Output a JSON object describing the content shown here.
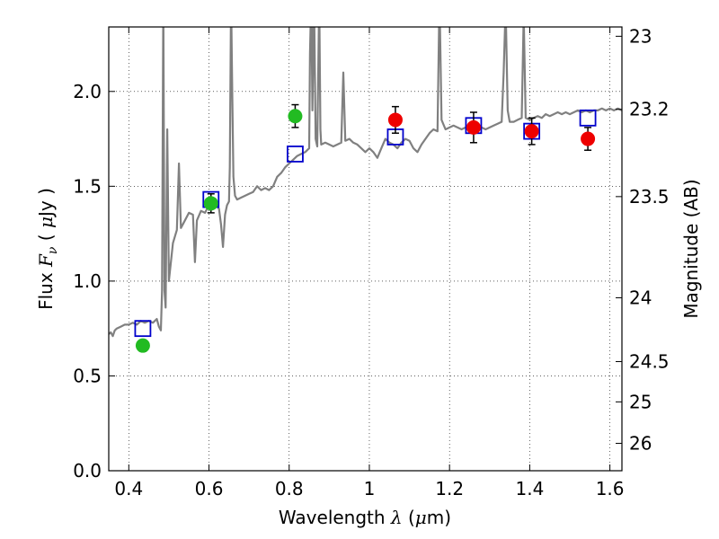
{
  "chart_data": {
    "type": "scatter",
    "xlabel": {
      "prefix": "Wavelength  ",
      "symbol": "λ",
      "mid": " (",
      "unit_sym": "μ",
      "suffix": "m)"
    },
    "ylabel": {
      "prefix": "Flux  ",
      "symbol": "F",
      "sub": "ν",
      "mid": "  ( ",
      "unit_sym": "μ",
      "suffix": "Jy )"
    },
    "y2label": "Magnitude (AB)",
    "xlim": [
      0.35,
      1.63
    ],
    "ylim": [
      0.0,
      2.34
    ],
    "grid": true,
    "x_ticks": [
      {
        "v": 0.4,
        "label": "0.4"
      },
      {
        "v": 0.6,
        "label": "0.6"
      },
      {
        "v": 0.8,
        "label": "0.8"
      },
      {
        "v": 1.0,
        "label": "1"
      },
      {
        "v": 1.2,
        "label": "1.2"
      },
      {
        "v": 1.4,
        "label": "1.4"
      },
      {
        "v": 1.6,
        "label": "1.6"
      }
    ],
    "y_ticks": [
      {
        "v": 0.0,
        "label": "0.0"
      },
      {
        "v": 0.5,
        "label": "0.5"
      },
      {
        "v": 1.0,
        "label": "1.0"
      },
      {
        "v": 1.5,
        "label": "1.5"
      },
      {
        "v": 2.0,
        "label": "2.0"
      }
    ],
    "y2_ticks": [
      {
        "mag": 23,
        "label": "23"
      },
      {
        "mag": 23.2,
        "label": "23.2"
      },
      {
        "mag": 23.5,
        "label": "23.5"
      },
      {
        "mag": 24,
        "label": "24"
      },
      {
        "mag": 24.5,
        "label": "24.5"
      },
      {
        "mag": 25,
        "label": "25"
      },
      {
        "mag": 26,
        "label": "26"
      }
    ],
    "model_spectrum": {
      "color": "#808080",
      "points": [
        [
          0.35,
          0.72
        ],
        [
          0.355,
          0.73
        ],
        [
          0.36,
          0.71
        ],
        [
          0.365,
          0.74
        ],
        [
          0.37,
          0.75
        ],
        [
          0.38,
          0.76
        ],
        [
          0.39,
          0.77
        ],
        [
          0.4,
          0.77
        ],
        [
          0.41,
          0.78
        ],
        [
          0.42,
          0.77
        ],
        [
          0.43,
          0.79
        ],
        [
          0.44,
          0.78
        ],
        [
          0.45,
          0.79
        ],
        [
          0.46,
          0.78
        ],
        [
          0.47,
          0.8
        ],
        [
          0.475,
          0.76
        ],
        [
          0.48,
          0.74
        ],
        [
          0.483,
          0.95
        ],
        [
          0.486,
          2.5
        ],
        [
          0.489,
          0.95
        ],
        [
          0.492,
          0.86
        ],
        [
          0.496,
          1.8
        ],
        [
          0.5,
          1.0
        ],
        [
          0.51,
          1.2
        ],
        [
          0.52,
          1.27
        ],
        [
          0.525,
          1.62
        ],
        [
          0.53,
          1.28
        ],
        [
          0.54,
          1.32
        ],
        [
          0.55,
          1.36
        ],
        [
          0.56,
          1.35
        ],
        [
          0.565,
          1.1
        ],
        [
          0.57,
          1.32
        ],
        [
          0.58,
          1.37
        ],
        [
          0.59,
          1.36
        ],
        [
          0.6,
          1.4
        ],
        [
          0.61,
          1.41
        ],
        [
          0.62,
          1.4
        ],
        [
          0.625,
          1.38
        ],
        [
          0.63,
          1.3
        ],
        [
          0.635,
          1.18
        ],
        [
          0.64,
          1.35
        ],
        [
          0.645,
          1.4
        ],
        [
          0.65,
          1.42
        ],
        [
          0.652,
          1.6
        ],
        [
          0.655,
          2.5
        ],
        [
          0.658,
          2.0
        ],
        [
          0.661,
          1.55
        ],
        [
          0.665,
          1.45
        ],
        [
          0.67,
          1.43
        ],
        [
          0.68,
          1.44
        ],
        [
          0.69,
          1.45
        ],
        [
          0.7,
          1.46
        ],
        [
          0.71,
          1.47
        ],
        [
          0.72,
          1.5
        ],
        [
          0.73,
          1.48
        ],
        [
          0.74,
          1.49
        ],
        [
          0.75,
          1.48
        ],
        [
          0.76,
          1.5
        ],
        [
          0.77,
          1.55
        ],
        [
          0.78,
          1.57
        ],
        [
          0.79,
          1.6
        ],
        [
          0.8,
          1.62
        ],
        [
          0.81,
          1.64
        ],
        [
          0.82,
          1.66
        ],
        [
          0.83,
          1.67
        ],
        [
          0.84,
          1.68
        ],
        [
          0.85,
          1.7
        ],
        [
          0.852,
          2.2
        ],
        [
          0.855,
          2.5
        ],
        [
          0.858,
          1.9
        ],
        [
          0.862,
          2.5
        ],
        [
          0.866,
          1.75
        ],
        [
          0.87,
          1.71
        ],
        [
          0.875,
          2.5
        ],
        [
          0.878,
          1.8
        ],
        [
          0.88,
          1.72
        ],
        [
          0.89,
          1.73
        ],
        [
          0.9,
          1.72
        ],
        [
          0.91,
          1.71
        ],
        [
          0.92,
          1.72
        ],
        [
          0.93,
          1.73
        ],
        [
          0.935,
          2.1
        ],
        [
          0.94,
          1.74
        ],
        [
          0.95,
          1.75
        ],
        [
          0.96,
          1.73
        ],
        [
          0.97,
          1.72
        ],
        [
          0.98,
          1.7
        ],
        [
          0.99,
          1.68
        ],
        [
          1.0,
          1.7
        ],
        [
          1.01,
          1.68
        ],
        [
          1.02,
          1.65
        ],
        [
          1.03,
          1.7
        ],
        [
          1.04,
          1.75
        ],
        [
          1.05,
          1.73
        ],
        [
          1.06,
          1.72
        ],
        [
          1.07,
          1.7
        ],
        [
          1.08,
          1.73
        ],
        [
          1.09,
          1.75
        ],
        [
          1.1,
          1.74
        ],
        [
          1.11,
          1.7
        ],
        [
          1.12,
          1.68
        ],
        [
          1.13,
          1.72
        ],
        [
          1.14,
          1.75
        ],
        [
          1.15,
          1.78
        ],
        [
          1.16,
          1.8
        ],
        [
          1.17,
          1.79
        ],
        [
          1.175,
          2.5
        ],
        [
          1.18,
          1.85
        ],
        [
          1.19,
          1.8
        ],
        [
          1.2,
          1.81
        ],
        [
          1.21,
          1.82
        ],
        [
          1.22,
          1.81
        ],
        [
          1.23,
          1.8
        ],
        [
          1.24,
          1.81
        ],
        [
          1.25,
          1.82
        ],
        [
          1.26,
          1.83
        ],
        [
          1.27,
          1.82
        ],
        [
          1.28,
          1.81
        ],
        [
          1.29,
          1.8
        ],
        [
          1.3,
          1.81
        ],
        [
          1.31,
          1.82
        ],
        [
          1.32,
          1.83
        ],
        [
          1.33,
          1.84
        ],
        [
          1.335,
          2.1
        ],
        [
          1.34,
          2.45
        ],
        [
          1.345,
          1.9
        ],
        [
          1.35,
          1.84
        ],
        [
          1.36,
          1.84
        ],
        [
          1.37,
          1.85
        ],
        [
          1.38,
          1.86
        ],
        [
          1.385,
          2.4
        ],
        [
          1.39,
          1.86
        ],
        [
          1.4,
          1.85
        ],
        [
          1.41,
          1.86
        ],
        [
          1.42,
          1.87
        ],
        [
          1.43,
          1.86
        ],
        [
          1.44,
          1.88
        ],
        [
          1.45,
          1.87
        ],
        [
          1.46,
          1.88
        ],
        [
          1.47,
          1.89
        ],
        [
          1.48,
          1.88
        ],
        [
          1.49,
          1.89
        ],
        [
          1.5,
          1.88
        ],
        [
          1.51,
          1.89
        ],
        [
          1.52,
          1.9
        ],
        [
          1.53,
          1.89
        ],
        [
          1.54,
          1.9
        ],
        [
          1.55,
          1.89
        ],
        [
          1.56,
          1.9
        ],
        [
          1.57,
          1.9
        ],
        [
          1.58,
          1.91
        ],
        [
          1.59,
          1.9
        ],
        [
          1.6,
          1.91
        ],
        [
          1.61,
          1.9
        ],
        [
          1.62,
          1.91
        ],
        [
          1.63,
          1.9
        ]
      ]
    },
    "model_photometry": {
      "color": "#0000cc",
      "points": [
        [
          0.435,
          0.75
        ],
        [
          0.605,
          1.43
        ],
        [
          0.815,
          1.67
        ],
        [
          1.065,
          1.76
        ],
        [
          1.26,
          1.82
        ],
        [
          1.405,
          1.79
        ],
        [
          1.545,
          1.86
        ]
      ]
    },
    "observed_optical": {
      "color": "#22bb22",
      "points": [
        {
          "x": 0.435,
          "y": 0.66,
          "err": 0.03
        },
        {
          "x": 0.605,
          "y": 1.41,
          "err": 0.05
        },
        {
          "x": 0.815,
          "y": 1.87,
          "err": 0.06
        }
      ]
    },
    "observed_nir": {
      "color": "#ee0000",
      "points": [
        {
          "x": 1.065,
          "y": 1.85,
          "err": 0.07
        },
        {
          "x": 1.26,
          "y": 1.81,
          "err": 0.08
        },
        {
          "x": 1.405,
          "y": 1.79,
          "err": 0.07
        },
        {
          "x": 1.545,
          "y": 1.75,
          "err": 0.06
        }
      ]
    }
  }
}
